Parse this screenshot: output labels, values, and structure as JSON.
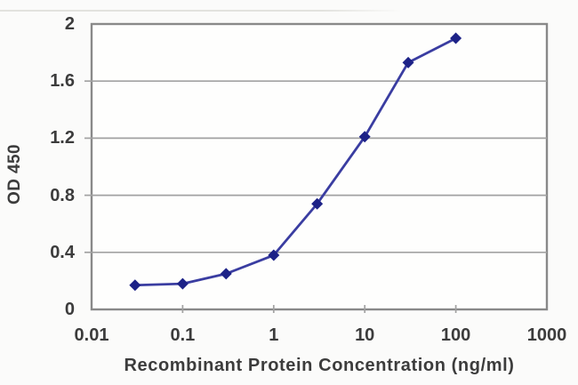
{
  "chart_data": {
    "type": "line",
    "title": "",
    "x": [
      0.03,
      0.1,
      0.3,
      1,
      3,
      10,
      30,
      100
    ],
    "y": [
      0.17,
      0.18,
      0.25,
      0.38,
      0.74,
      1.21,
      1.73,
      1.9
    ],
    "xlabel": "Recombinant Protein Concentration (ng/ml)",
    "ylabel": "OD 450",
    "x_scale": "log",
    "xlim": [
      0.01,
      1000
    ],
    "ylim": [
      0,
      2
    ],
    "x_ticks": [
      0.01,
      0.1,
      1,
      10,
      100,
      1000
    ],
    "x_tick_labels": [
      "0.01",
      "0.1",
      "1",
      "10",
      "100",
      "1000"
    ],
    "y_ticks": [
      0,
      0.4,
      0.8,
      1.2,
      1.6,
      2
    ],
    "y_tick_labels": [
      "0",
      "0.4",
      "0.8",
      "1.2",
      "1.6",
      "2"
    ],
    "grid": "horizontal",
    "legend": "none",
    "marker": "diamond",
    "colors": {
      "line": "#3a3da1",
      "marker": "#1d2287",
      "axis": "#898989",
      "grid": "#a2a2a2",
      "text": "#3c3c3c",
      "plot_bg": "#fefefd",
      "page_bg": "#fbfbfa"
    }
  }
}
